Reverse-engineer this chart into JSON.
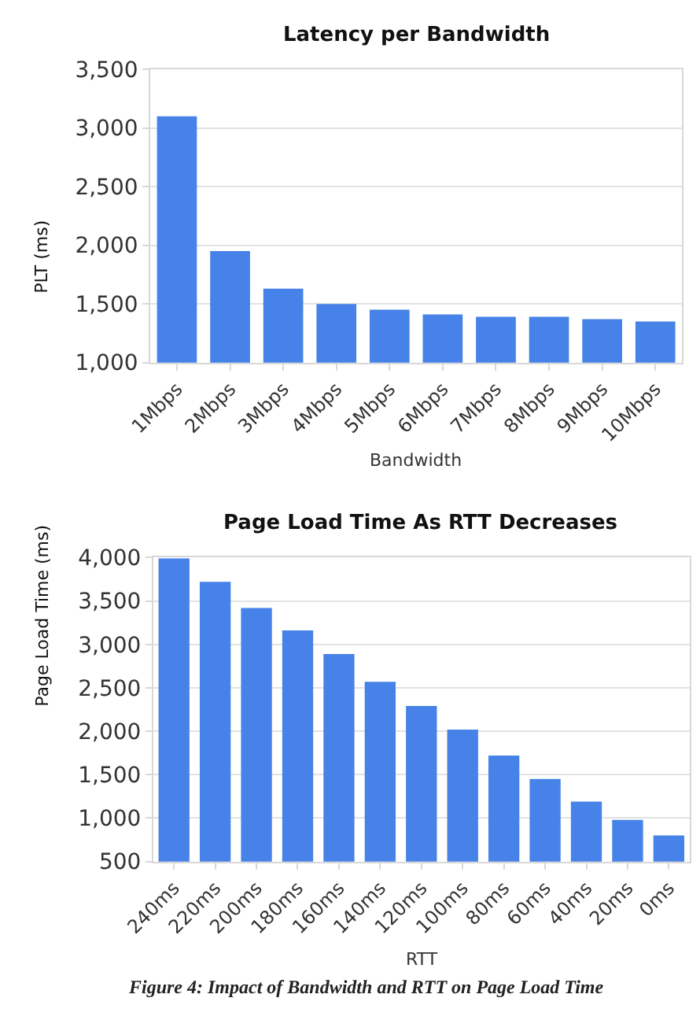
{
  "chart_data": [
    {
      "type": "bar",
      "title": "Latency per Bandwidth",
      "xlabel": "Bandwidth",
      "ylabel": "PLT (ms)",
      "categories": [
        "1Mbps",
        "2Mbps",
        "3Mbps",
        "4Mbps",
        "5Mbps",
        "6Mbps",
        "7Mbps",
        "8Mbps",
        "9Mbps",
        "10Mbps"
      ],
      "values": [
        3100,
        1950,
        1630,
        1500,
        1450,
        1410,
        1390,
        1390,
        1370,
        1350
      ],
      "color": "#4682e8",
      "ylim": [
        1000,
        3500
      ],
      "yticks": [
        {
          "value": 1000,
          "label": "1,000"
        },
        {
          "value": 1500,
          "label": "1,500"
        },
        {
          "value": 2000,
          "label": "2,000"
        },
        {
          "value": 2500,
          "label": "2,500"
        },
        {
          "value": 3000,
          "label": "3,000"
        },
        {
          "value": 3500,
          "label": "3,500"
        }
      ],
      "grid": "y"
    },
    {
      "type": "bar",
      "title": "Page Load Time As RTT Decreases",
      "xlabel": "RTT",
      "ylabel": "Page Load Time (ms)",
      "categories": [
        "240ms",
        "220ms",
        "200ms",
        "180ms",
        "160ms",
        "140ms",
        "120ms",
        "100ms",
        "80ms",
        "60ms",
        "40ms",
        "20ms",
        "0ms"
      ],
      "values": [
        3990,
        3720,
        3420,
        3160,
        2890,
        2570,
        2290,
        2020,
        1720,
        1450,
        1190,
        980,
        800
      ],
      "color": "#4682e8",
      "ylim": [
        500,
        4000
      ],
      "yticks": [
        500,
        {
          "value": 1000,
          "label": "1,000"
        },
        {
          "value": 1500,
          "label": "1,500"
        },
        {
          "value": 2000,
          "label": "2,000"
        },
        {
          "value": 2500,
          "label": "2,500"
        },
        {
          "value": 3000,
          "label": "3,000"
        },
        {
          "value": 3500,
          "label": "3,500"
        },
        {
          "value": 4000,
          "label": "4,000"
        }
      ],
      "grid": "y",
      "annotations": [
        "Figure 4: Impact of Bandwidth and RTT on Page Load Time"
      ]
    }
  ]
}
